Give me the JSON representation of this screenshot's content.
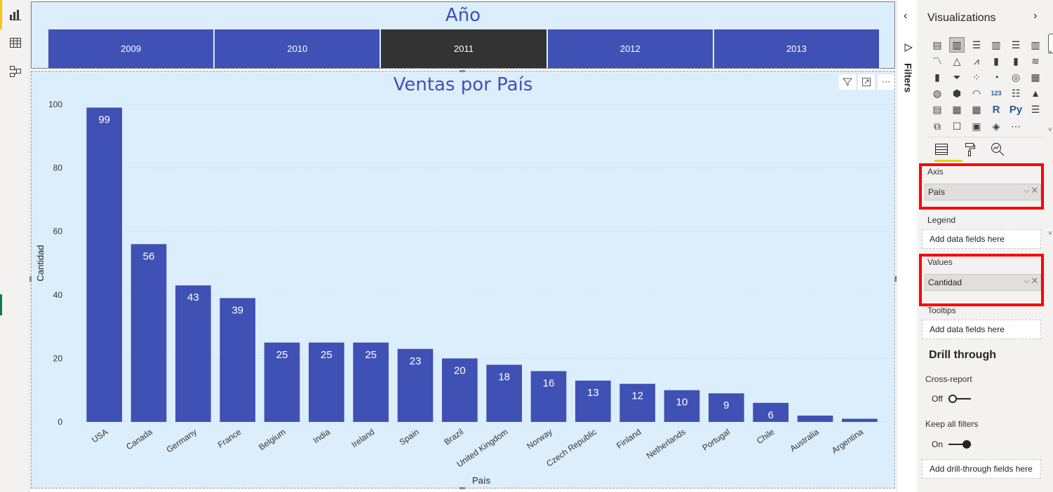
{
  "slicer": {
    "title": "Año",
    "years": [
      {
        "label": "2009",
        "selected": false
      },
      {
        "label": "2010",
        "selected": false
      },
      {
        "label": "2011",
        "selected": true
      },
      {
        "label": "2012",
        "selected": false
      },
      {
        "label": "2013",
        "selected": false
      }
    ]
  },
  "visual_header": {
    "filter_icon": "filter-icon",
    "focus_icon": "focus-mode-icon",
    "more_icon": "more-options-icon"
  },
  "chart_data": {
    "type": "bar",
    "title": "Ventas por País",
    "xlabel": "País",
    "ylabel": "Cantidad",
    "ylim": [
      0,
      100
    ],
    "yticks": [
      0,
      20,
      40,
      60,
      80,
      100
    ],
    "grid": true,
    "bar_color": "#3f51b5",
    "categories": [
      "USA",
      "Canada",
      "Germany",
      "France",
      "Belgium",
      "India",
      "Ireland",
      "Spain",
      "Brazil",
      "United Kingdom",
      "Norway",
      "Czech Republic",
      "Finland",
      "Netherlands",
      "Portugal",
      "Chile",
      "Australia",
      "Argentina"
    ],
    "values": [
      99,
      56,
      43,
      39,
      25,
      25,
      25,
      23,
      20,
      18,
      16,
      13,
      12,
      10,
      9,
      6,
      2,
      1
    ],
    "data_labels": [
      "99",
      "56",
      "43",
      "39",
      "25",
      "25",
      "25",
      "23",
      "20",
      "18",
      "16",
      "13",
      "12",
      "10",
      "9",
      "6",
      "",
      ""
    ]
  },
  "filters_pane": {
    "label": "Filters",
    "collapse_icon": "chevron-left-icon",
    "funnel_icon": "filter-icon"
  },
  "viz_pane": {
    "title": "Visualizations",
    "expand_icon": "chevron-right-icon",
    "axis": {
      "label": "Axis",
      "field": "País"
    },
    "legend": {
      "label": "Legend",
      "placeholder": "Add data fields here"
    },
    "values": {
      "label": "Values",
      "field": "Cantidad"
    },
    "tooltips": {
      "label": "Tooltips",
      "placeholder": "Add data fields here"
    },
    "drill": {
      "title": "Drill through",
      "cross_report": {
        "label": "Cross-report",
        "state": "Off"
      },
      "keep_filters": {
        "label": "Keep all filters",
        "state": "On"
      },
      "well_placeholder": "Add drill-through fields here"
    }
  },
  "colors": {
    "accent": "#f2c811",
    "bar": "#3f51b5",
    "visual_bg": "#dceefc",
    "highlight_box": "#ff0000",
    "selected_year": "#333333"
  }
}
